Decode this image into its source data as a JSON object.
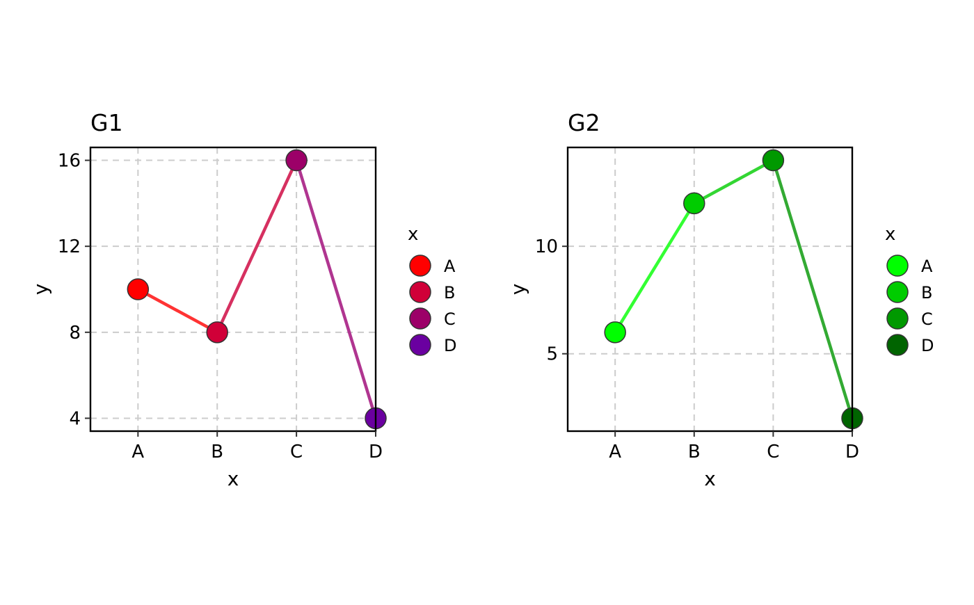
{
  "chart_data": [
    {
      "type": "line",
      "title": "G1",
      "xlabel": "x",
      "ylabel": "y",
      "categories": [
        "A",
        "B",
        "C",
        "D"
      ],
      "values": [
        10,
        8,
        16,
        4
      ],
      "point_colors": [
        "#ff0000",
        "#d00038",
        "#9c0068",
        "#6a00a0"
      ],
      "segment_colors": [
        "#ff3333",
        "#d63060",
        "#b03590"
      ],
      "ylim": [
        3.4,
        16.6
      ],
      "yticks": [
        4,
        8,
        12,
        16
      ],
      "grid": true,
      "legend": {
        "title": "x",
        "placement": "right",
        "labels": [
          "A",
          "B",
          "C",
          "D"
        ]
      }
    },
    {
      "type": "line",
      "title": "G2",
      "xlabel": "x",
      "ylabel": "y",
      "categories": [
        "A",
        "B",
        "C",
        "D"
      ],
      "values": [
        6,
        12,
        14,
        2
      ],
      "point_colors": [
        "#00ff00",
        "#00cc00",
        "#009900",
        "#006400"
      ],
      "segment_colors": [
        "#33ff33",
        "#33d633",
        "#33aa33"
      ],
      "ylim": [
        1.4,
        14.6
      ],
      "yticks": [
        5,
        10
      ],
      "grid": true,
      "legend": {
        "title": "x",
        "placement": "right",
        "labels": [
          "A",
          "B",
          "C",
          "D"
        ]
      }
    }
  ]
}
